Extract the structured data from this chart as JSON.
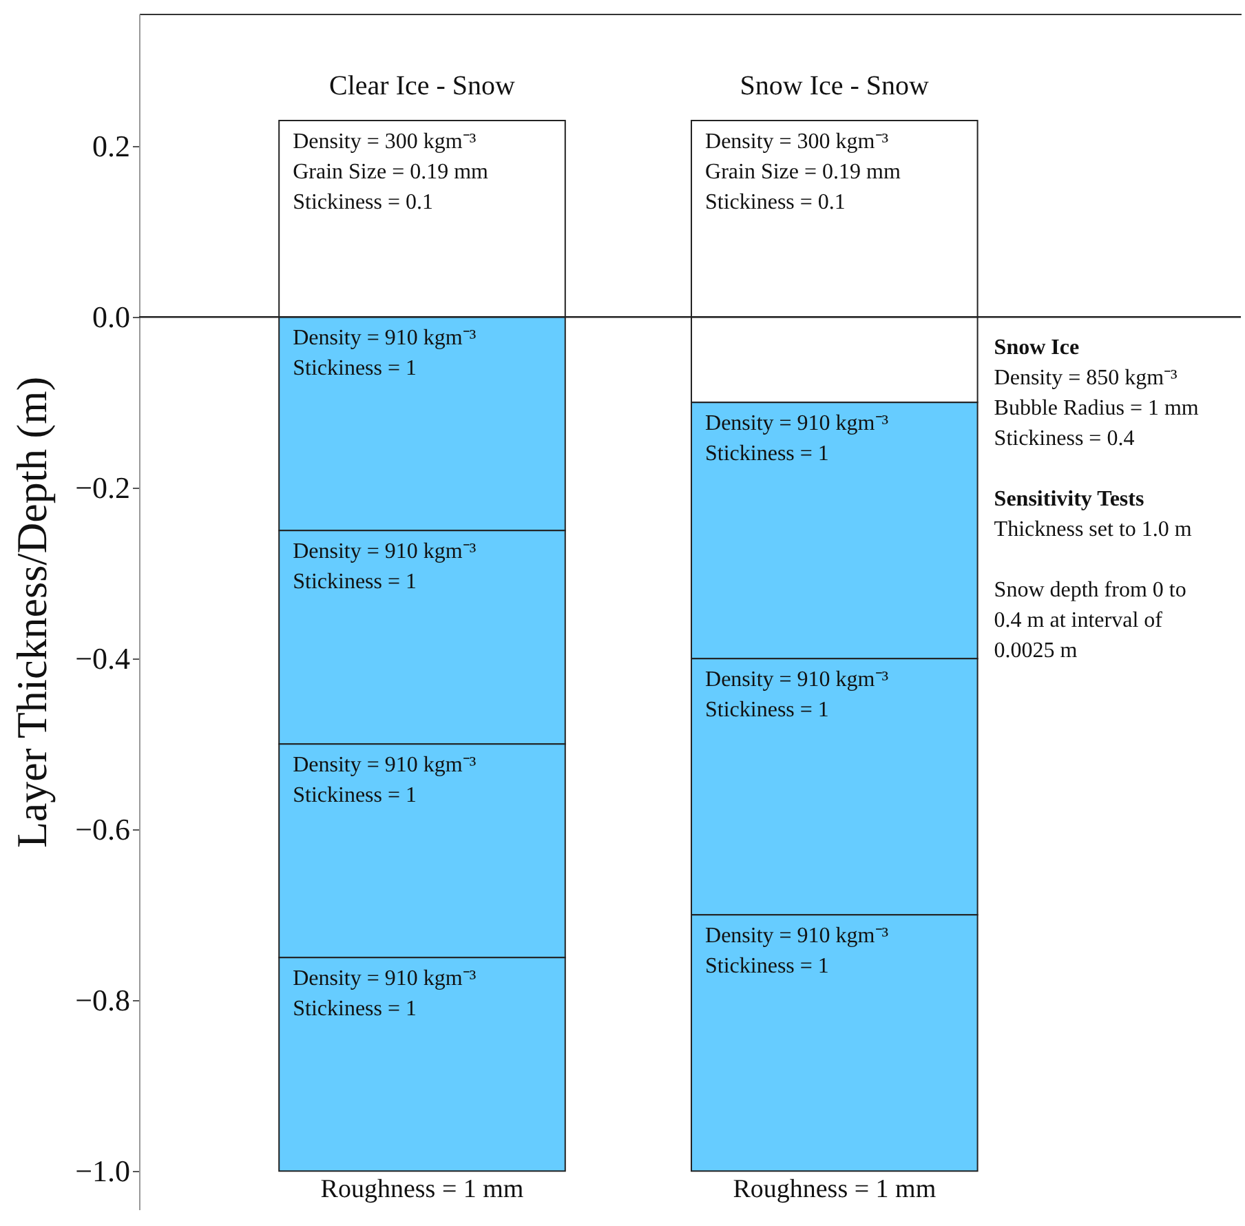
{
  "chart_data": {
    "type": "bar",
    "stacked": true,
    "ylabel": "Layer Thickness/Depth (m)",
    "categories": [
      "Clear Ice - Snow",
      "Snow Ice - Snow"
    ],
    "series": [
      {
        "color": "#ffffff",
        "values": [
          0.23,
          0.23
        ]
      },
      {
        "colors": [
          "#66ccff",
          "#ffffff"
        ],
        "values": [
          -0.25,
          -0.1
        ]
      },
      {
        "color": "#66ccff",
        "values": [
          -0.25,
          -0.3
        ]
      },
      {
        "color": "#66ccff",
        "values": [
          -0.25,
          -0.3
        ]
      },
      {
        "color": "#66ccff",
        "values": [
          -0.25,
          -0.3
        ]
      }
    ],
    "ylim": [
      -1.045,
      0.355
    ],
    "yticks": [
      {
        "value": -1.0,
        "label": "−1.0"
      },
      {
        "value": -0.8,
        "label": "−0.8"
      },
      {
        "value": -0.6,
        "label": "−0.6"
      },
      {
        "value": -0.4,
        "label": "−0.4"
      },
      {
        "value": -0.2,
        "label": "−0.2"
      },
      {
        "value": 0,
        "label": "0.0"
      },
      {
        "value": 0.2,
        "label": "0.2"
      }
    ],
    "ref_lines": [
      {
        "axis": "y",
        "value": 0
      }
    ],
    "grid": false,
    "annotations": [
      {
        "text": "Density = 300 kgm⁻³\nGrain Size = 0.19 mm\nStickiness = 0.1",
        "x": "Clear Ice - Snow",
        "y": 0.23
      },
      {
        "text": "Density = 910 kgm⁻³\nStickiness = 1",
        "x": "Clear Ice - Snow",
        "y": 0
      },
      {
        "text": "Density = 910 kgm⁻³\nStickiness = 1",
        "x": "Clear Ice - Snow",
        "y": -0.25
      },
      {
        "text": "Density = 910 kgm⁻³\nStickiness = 1",
        "x": "Clear Ice - Snow",
        "y": -0.5
      },
      {
        "text": "Density = 910 kgm⁻³\nStickiness = 1",
        "x": "Clear Ice - Snow",
        "y": -0.75
      },
      {
        "text": "Roughness = 1 mm",
        "x": "Clear Ice - Snow",
        "y": -1.0
      },
      {
        "text": "Density = 300 kgm⁻³\nGrain Size = 0.19 mm\nStickiness = 0.1",
        "x": "Snow Ice - Snow",
        "y": 0.23
      },
      {
        "text": "Density = 910 kgm⁻³\nStickiness = 1",
        "x": "Snow Ice - Snow",
        "y": -0.1
      },
      {
        "text": "Density = 910 kgm⁻³\nStickiness = 1",
        "x": "Snow Ice - Snow",
        "y": -0.4
      },
      {
        "text": "Density = 910 kgm⁻³\nStickiness = 1",
        "x": "Snow Ice - Snow",
        "y": -0.7
      },
      {
        "text": "Roughness = 1 mm",
        "x": "Snow Ice - Snow",
        "y": -1.0
      },
      "Snow Ice",
      "Density = 850 kgm⁻³\nBubble Radius = 1 mm\nStickiness = 0.4",
      "Sensitivity Tests",
      "Thickness set to 1.0 m",
      "Snow depth from 0 to\n0.4 m at interval of\n0.0025 m"
    ]
  }
}
